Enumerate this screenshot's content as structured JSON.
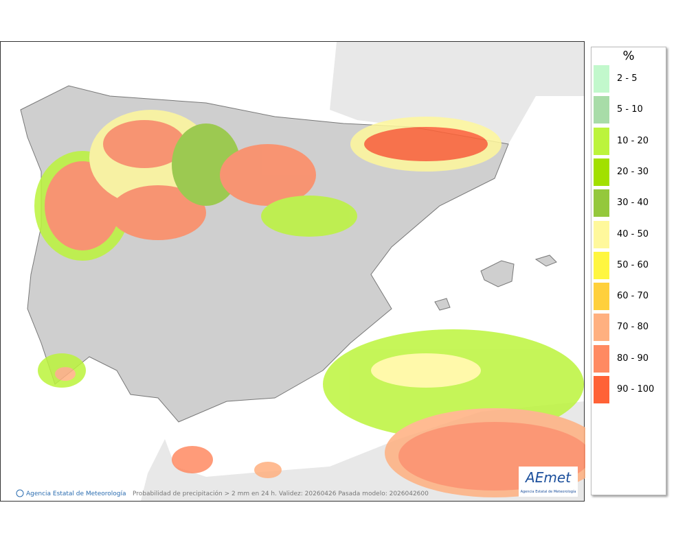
{
  "legend": {
    "title": "%",
    "items": [
      {
        "label": "2 - 5",
        "color": "#c2f8cc"
      },
      {
        "label": "5 - 10",
        "color": "#a8dca8"
      },
      {
        "label": "10 - 20",
        "color": "#bcf43c"
      },
      {
        "label": "20 - 30",
        "color": "#a2e000"
      },
      {
        "label": "30 - 40",
        "color": "#94c83c"
      },
      {
        "label": "40 - 50",
        "color": "#fff89c"
      },
      {
        "label": "50 - 60",
        "color": "#fff640"
      },
      {
        "label": "60 - 70",
        "color": "#ffd03c"
      },
      {
        "label": "70 - 80",
        "color": "#ffb080"
      },
      {
        "label": "80 - 90",
        "color": "#ff8a62"
      },
      {
        "label": "90 - 100",
        "color": "#ff6236"
      }
    ]
  },
  "footer": {
    "credit": "Agencia Estatal de Meteorología",
    "caption": "Probabilidad de precipitación > 2 mm en 24 h. Validez: 20260426 Pasada modelo: 2026042600"
  },
  "logo": {
    "name": "AEmet",
    "subtitle": "Agencia Estatal de Meteorología"
  }
}
